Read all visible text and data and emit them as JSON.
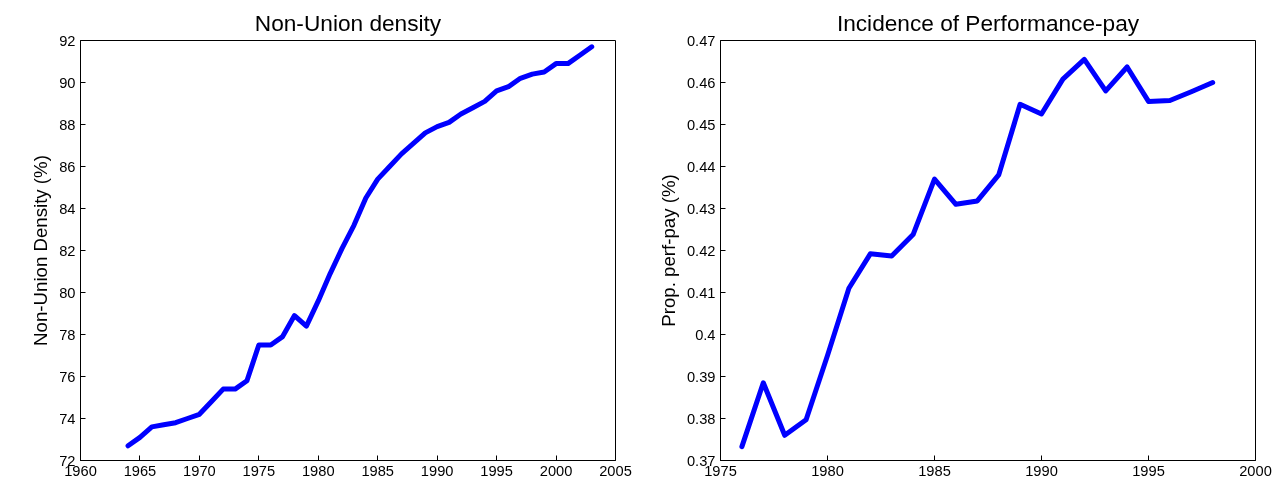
{
  "chart_data": [
    {
      "type": "line",
      "title": "Non-Union density",
      "ylabel": "Non-Union Density (%)",
      "x": [
        1964,
        1965,
        1966,
        1967,
        1968,
        1969,
        1970,
        1971,
        1972,
        1973,
        1974,
        1975,
        1976,
        1977,
        1978,
        1979,
        1980,
        1981,
        1982,
        1983,
        1984,
        1985,
        1986,
        1987,
        1988,
        1989,
        1990,
        1991,
        1992,
        1993,
        1994,
        1995,
        1996,
        1997,
        1998,
        1999,
        2000,
        2001,
        2002,
        2003
      ],
      "series": [
        {
          "color": "#0000ff",
          "values": [
            72.7,
            73.1,
            73.6,
            73.7,
            73.8,
            74.0,
            74.2,
            74.8,
            75.4,
            75.4,
            75.8,
            77.5,
            77.5,
            77.9,
            78.9,
            78.4,
            79.6,
            80.9,
            82.1,
            83.2,
            84.5,
            85.4,
            86.0,
            86.6,
            87.1,
            87.6,
            87.9,
            88.1,
            88.5,
            88.8,
            89.1,
            89.6,
            89.8,
            90.2,
            90.4,
            90.5,
            90.9,
            90.9,
            91.3,
            91.7
          ]
        }
      ],
      "xlim": [
        1960,
        2005
      ],
      "xticks": [
        1960,
        1965,
        1970,
        1975,
        1980,
        1985,
        1990,
        1995,
        2000,
        2005
      ],
      "ylim": [
        72,
        92
      ],
      "yticks": [
        72,
        74,
        76,
        78,
        80,
        82,
        84,
        86,
        88,
        90,
        92
      ],
      "grid": false,
      "line_style": "solid"
    },
    {
      "type": "line",
      "title": "Incidence of Performance-pay",
      "ylabel": "Prop. perf-pay (%)",
      "x": [
        1976,
        1977,
        1978,
        1979,
        1980,
        1981,
        1982,
        1983,
        1984,
        1985,
        1986,
        1987,
        1988,
        1989,
        1990,
        1991,
        1992,
        1993,
        1994,
        1995,
        1996,
        1997,
        1998
      ],
      "series": [
        {
          "color": "#0000ff",
          "values": [
            0.3733,
            0.3885,
            0.376,
            0.3797,
            0.395,
            0.411,
            0.4192,
            0.4187,
            0.4238,
            0.437,
            0.431,
            0.4318,
            0.438,
            0.4548,
            0.4525,
            0.4608,
            0.4655,
            0.458,
            0.4637,
            0.4555,
            0.4557,
            0.4578,
            0.46
          ]
        }
      ],
      "xlim": [
        1975,
        2000
      ],
      "xticks": [
        1975,
        1980,
        1985,
        1990,
        1995,
        2000
      ],
      "ylim": [
        0.37,
        0.47
      ],
      "yticks": [
        0.37,
        0.38,
        0.39,
        0.4,
        0.41,
        0.42,
        0.43,
        0.44,
        0.45,
        0.46,
        0.47
      ],
      "grid": false,
      "line_style": "solid"
    }
  ]
}
